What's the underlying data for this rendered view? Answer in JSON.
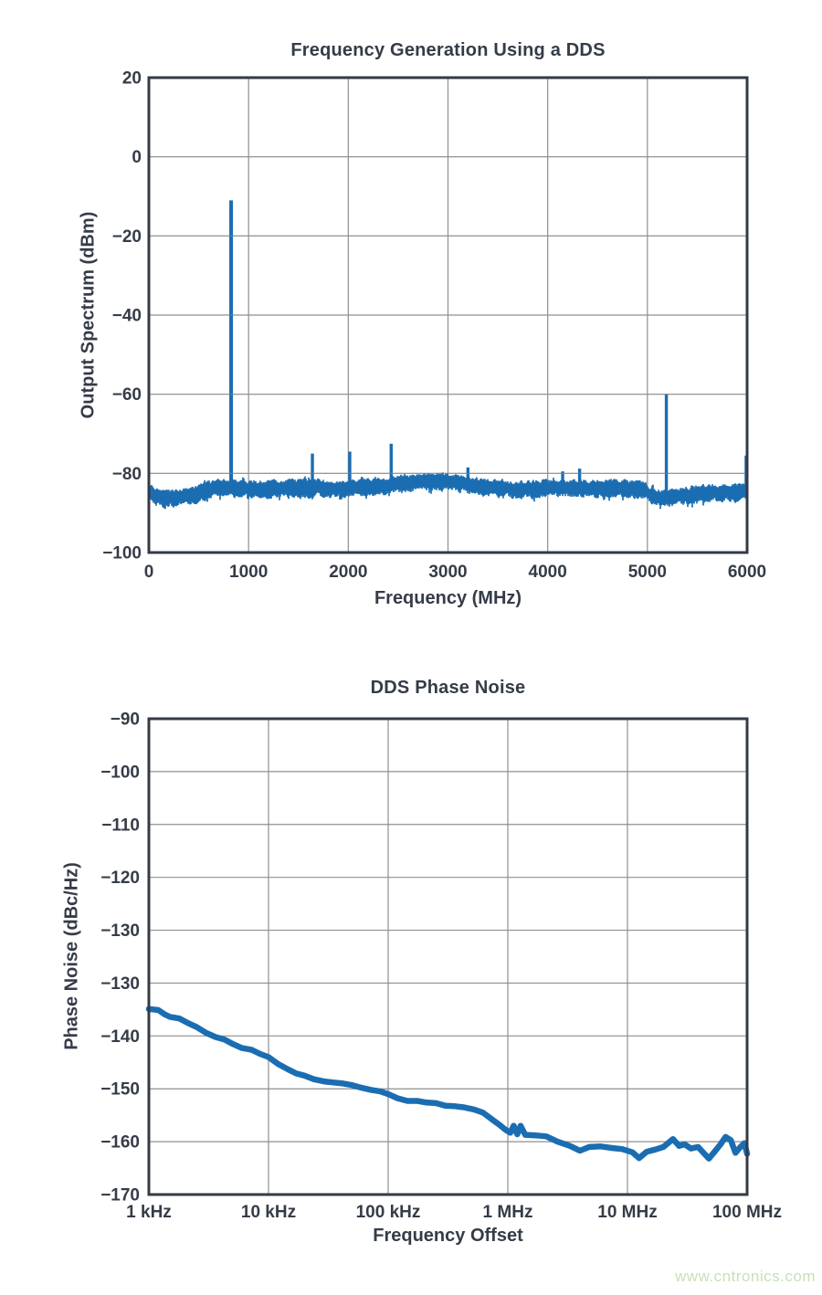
{
  "page": {
    "watermark_text": "www.cntronics.com",
    "watermark_color": "#c7e1b8",
    "ink_color": "#353c48",
    "grid_color": "#8f8f8f",
    "axis_box_color": "#333a46"
  },
  "chart_data": [
    {
      "type": "line",
      "title": "Frequency Generation Using a DDS",
      "xlabel": "Frequency (MHz)",
      "ylabel": "Output Spectrum (dBm)",
      "x_range": [
        0,
        6000
      ],
      "y_range": [
        -100,
        20
      ],
      "xtick_values": [
        0,
        1000,
        2000,
        3000,
        4000,
        5000,
        6000
      ],
      "xtick_labels": [
        "0",
        "1000",
        "2000",
        "3000",
        "4000",
        "5000",
        "6000"
      ],
      "ytick_values": [
        20,
        0,
        -20,
        -40,
        -60,
        -80,
        -100
      ],
      "ytick_labels": [
        "20",
        "0",
        "−20",
        "−40",
        "−60",
        "−80",
        "−100"
      ],
      "grid": true,
      "legend": "none",
      "line_color": "#1b6db2",
      "noise_floor_dbm": -83.5,
      "noise_jitter_db": 2.2,
      "noise_mean_points": [
        [
          0,
          -84.2
        ],
        [
          80,
          -85.6
        ],
        [
          160,
          -86.0
        ],
        [
          260,
          -85.7
        ],
        [
          360,
          -85.3
        ],
        [
          470,
          -84.8
        ],
        [
          560,
          -84.1
        ],
        [
          650,
          -83.5
        ],
        [
          760,
          -83.2
        ],
        [
          860,
          -83.4
        ],
        [
          1000,
          -83.5
        ],
        [
          1200,
          -83.6
        ],
        [
          1400,
          -83.3
        ],
        [
          1650,
          -83.3
        ],
        [
          1850,
          -83.5
        ],
        [
          2050,
          -83.3
        ],
        [
          2250,
          -82.9
        ],
        [
          2450,
          -82.4
        ],
        [
          2650,
          -81.9
        ],
        [
          2850,
          -81.6
        ],
        [
          3000,
          -81.7
        ],
        [
          3150,
          -82.2
        ],
        [
          3350,
          -83.1
        ],
        [
          3550,
          -83.6
        ],
        [
          3750,
          -83.7
        ],
        [
          3950,
          -83.5
        ],
        [
          4150,
          -83.3
        ],
        [
          4350,
          -83.3
        ],
        [
          4550,
          -83.4
        ],
        [
          4750,
          -83.3
        ],
        [
          4950,
          -83.7
        ],
        [
          5060,
          -85.7
        ],
        [
          5180,
          -85.9
        ],
        [
          5300,
          -85.4
        ],
        [
          5450,
          -85.0
        ],
        [
          5650,
          -84.6
        ],
        [
          5850,
          -84.4
        ],
        [
          6000,
          -84.2
        ]
      ],
      "spikes_mhz_dbm": [
        [
          825,
          -11
        ],
        [
          1640,
          -75
        ],
        [
          2015,
          -74.5
        ],
        [
          2430,
          -72.5
        ],
        [
          3200,
          -78.5
        ],
        [
          4150,
          -79.5
        ],
        [
          4320,
          -78.8
        ],
        [
          5190,
          -60
        ],
        [
          5990,
          -75.5
        ]
      ]
    },
    {
      "type": "line",
      "title": "DDS Phase Noise",
      "xlabel": "Frequency Offset",
      "ylabel": "Phase Noise (dBc/Hz)",
      "xscale": "log",
      "x_range_hz": [
        1000,
        100000000
      ],
      "xticks": [
        {
          "value": 1000,
          "label": "1 kHz"
        },
        {
          "value": 10000,
          "label": "10 kHz"
        },
        {
          "value": 100000,
          "label": "100 kHz"
        },
        {
          "value": 1000000,
          "label": "1 MHz"
        },
        {
          "value": 10000000,
          "label": "10 MHz"
        },
        {
          "value": 100000000,
          "label": "100 MHz"
        }
      ],
      "ytick_labels": [
        "−90",
        "−100",
        "−110",
        "−120",
        "−130",
        "−130",
        "−140",
        "−150",
        "−160",
        "−170"
      ],
      "ytick_note": "labels as printed in source figure; −130 appears twice",
      "grid": true,
      "legend": "none",
      "line_color": "#1b6db2",
      "points_hz_dbc": [
        [
          1000,
          -134.9
        ],
        [
          1200,
          -135.1
        ],
        [
          1350,
          -135.9
        ],
        [
          1500,
          -136.4
        ],
        [
          1800,
          -136.7
        ],
        [
          2100,
          -137.5
        ],
        [
          2500,
          -138.3
        ],
        [
          3000,
          -139.4
        ],
        [
          3600,
          -140.2
        ],
        [
          4300,
          -140.7
        ],
        [
          5000,
          -141.5
        ],
        [
          6000,
          -142.3
        ],
        [
          7200,
          -142.6
        ],
        [
          8500,
          -143.4
        ],
        [
          10000,
          -144.0
        ],
        [
          12000,
          -145.3
        ],
        [
          14500,
          -146.3
        ],
        [
          17000,
          -147.1
        ],
        [
          20000,
          -147.5
        ],
        [
          24000,
          -148.2
        ],
        [
          29000,
          -148.6
        ],
        [
          35000,
          -148.8
        ],
        [
          42000,
          -149.0
        ],
        [
          50000,
          -149.3
        ],
        [
          60000,
          -149.8
        ],
        [
          72000,
          -150.2
        ],
        [
          86000,
          -150.5
        ],
        [
          100000,
          -151.0
        ],
        [
          120000,
          -151.8
        ],
        [
          145000,
          -152.3
        ],
        [
          175000,
          -152.3
        ],
        [
          210000,
          -152.6
        ],
        [
          250000,
          -152.7
        ],
        [
          300000,
          -153.2
        ],
        [
          360000,
          -153.3
        ],
        [
          430000,
          -153.5
        ],
        [
          520000,
          -153.9
        ],
        [
          620000,
          -154.5
        ],
        [
          750000,
          -155.9
        ],
        [
          850000,
          -156.8
        ],
        [
          950000,
          -157.7
        ],
        [
          1050000,
          -158.3
        ],
        [
          1120000,
          -157.0
        ],
        [
          1200000,
          -158.6
        ],
        [
          1280000,
          -157.0
        ],
        [
          1400000,
          -158.7
        ],
        [
          1700000,
          -158.8
        ],
        [
          2100000,
          -159.0
        ],
        [
          2600000,
          -160.0
        ],
        [
          3300000,
          -160.8
        ],
        [
          4000000,
          -161.7
        ],
        [
          4800000,
          -161.0
        ],
        [
          6000000,
          -160.9
        ],
        [
          7500000,
          -161.2
        ],
        [
          9000000,
          -161.4
        ],
        [
          11000000,
          -162.0
        ],
        [
          12500000,
          -163.1
        ],
        [
          14500000,
          -161.9
        ],
        [
          17000000,
          -161.5
        ],
        [
          20000000,
          -161.0
        ],
        [
          24000000,
          -159.5
        ],
        [
          27000000,
          -160.8
        ],
        [
          30000000,
          -160.5
        ],
        [
          34000000,
          -161.3
        ],
        [
          39000000,
          -161.0
        ],
        [
          44000000,
          -162.3
        ],
        [
          48000000,
          -163.2
        ],
        [
          54000000,
          -161.8
        ],
        [
          60000000,
          -160.5
        ],
        [
          66000000,
          -159.1
        ],
        [
          73000000,
          -159.7
        ],
        [
          80000000,
          -162.1
        ],
        [
          88000000,
          -161.0
        ],
        [
          95000000,
          -160.3
        ],
        [
          100000000,
          -162.3
        ]
      ]
    }
  ]
}
